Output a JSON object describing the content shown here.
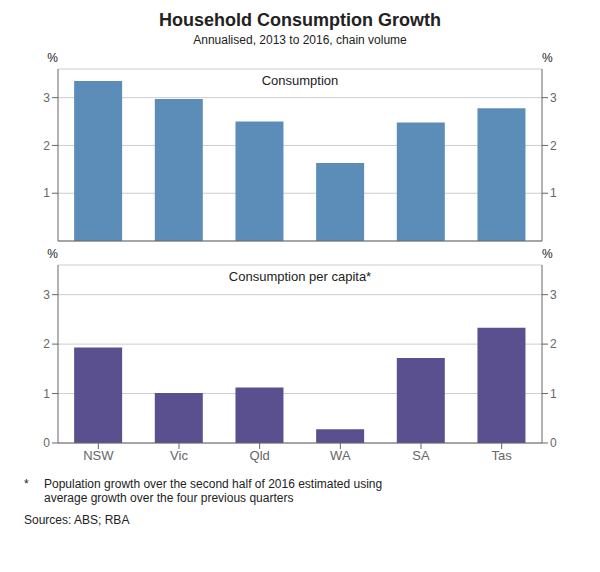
{
  "chart_data": [
    {
      "type": "bar",
      "title": "Household Consumption Growth",
      "subtitle": "Annualised, 2013 to 2016, chain volume",
      "annotations": [
        "Consumption"
      ],
      "categories": [
        "NSW",
        "Vic",
        "Qld",
        "WA",
        "SA",
        "Tas"
      ],
      "values": [
        3.35,
        2.97,
        2.5,
        1.63,
        2.48,
        2.78
      ],
      "color": "#5B8DB8",
      "ylabel": "%",
      "y2label": "%",
      "ylim": [
        0,
        3.6
      ],
      "yticks": [
        1,
        2,
        3
      ],
      "y2lim": [
        0,
        3.6
      ],
      "y2ticks": [
        1,
        2,
        3
      ],
      "grid": true,
      "tick_labels": "y"
    },
    {
      "type": "bar",
      "annotations": [
        "Consumption per capita*",
        "*",
        "Population growth over the second half of 2016 estimated using\naverage growth over the four previous quarters",
        "Sources: ABS; RBA"
      ],
      "categories": [
        "NSW",
        "Vic",
        "Qld",
        "WA",
        "SA",
        "Tas"
      ],
      "values": [
        1.93,
        1.01,
        1.12,
        0.28,
        1.72,
        2.33
      ],
      "color": "#5A5090",
      "ylabel": "%",
      "y2label": "%",
      "ylim": [
        0,
        3.6
      ],
      "yticks": [
        0,
        1,
        2,
        3
      ],
      "y2lim": [
        0,
        3.6
      ],
      "y2ticks": [
        0,
        1,
        2,
        3
      ],
      "grid": true
    }
  ]
}
